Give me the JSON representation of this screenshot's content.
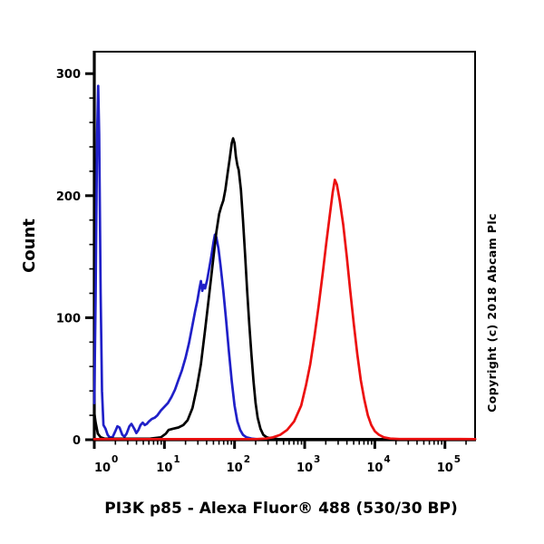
{
  "annotations": {
    "copyright": "Copyright (c) 2018 Abcam Plc"
  },
  "chart_data": {
    "type": "line",
    "chart_kind": "flow-cytometry-histogram-overlay",
    "title": "",
    "xlabel": "PI3K p85 - Alexa Fluor® 488 (530/30 BP)",
    "ylabel": "Count",
    "x_scale": "log10",
    "xlim_log10": [
      0,
      5.43
    ],
    "ylim": [
      0,
      318
    ],
    "x_decades": [
      0,
      1,
      2,
      3,
      4,
      5
    ],
    "x_tick_base": "10",
    "y_major_ticks": [
      0,
      100,
      200,
      300
    ],
    "y_minor_step": 20,
    "grid": false,
    "legend": "none",
    "axis_color": "#000000",
    "series": [
      {
        "name": "blue-curve",
        "color": "#2020c8",
        "peak": {
          "x_log10": 1.72,
          "count": 168
        },
        "points": [
          [
            0.0,
            30
          ],
          [
            0.02,
            120
          ],
          [
            0.04,
            250
          ],
          [
            0.055,
            290
          ],
          [
            0.07,
            250
          ],
          [
            0.09,
            120
          ],
          [
            0.11,
            40
          ],
          [
            0.13,
            12
          ],
          [
            0.16,
            9
          ],
          [
            0.19,
            4
          ],
          [
            0.22,
            2
          ],
          [
            0.26,
            2
          ],
          [
            0.3,
            7
          ],
          [
            0.33,
            11
          ],
          [
            0.36,
            10
          ],
          [
            0.4,
            4
          ],
          [
            0.43,
            2.5
          ],
          [
            0.46,
            5
          ],
          [
            0.5,
            11
          ],
          [
            0.53,
            13
          ],
          [
            0.57,
            9
          ],
          [
            0.6,
            5.5
          ],
          [
            0.63,
            8
          ],
          [
            0.66,
            12
          ],
          [
            0.69,
            14
          ],
          [
            0.72,
            12
          ],
          [
            0.75,
            13
          ],
          [
            0.78,
            15
          ],
          [
            0.82,
            17
          ],
          [
            0.86,
            18
          ],
          [
            0.9,
            20
          ],
          [
            0.95,
            24
          ],
          [
            1.0,
            27
          ],
          [
            1.05,
            30
          ],
          [
            1.1,
            35
          ],
          [
            1.15,
            41
          ],
          [
            1.2,
            49
          ],
          [
            1.25,
            57
          ],
          [
            1.3,
            67
          ],
          [
            1.35,
            79
          ],
          [
            1.4,
            94
          ],
          [
            1.44,
            106
          ],
          [
            1.47,
            114
          ],
          [
            1.5,
            124
          ],
          [
            1.52,
            130
          ],
          [
            1.54,
            122
          ],
          [
            1.56,
            127
          ],
          [
            1.58,
            124
          ],
          [
            1.61,
            131
          ],
          [
            1.64,
            141
          ],
          [
            1.67,
            151
          ],
          [
            1.7,
            162
          ],
          [
            1.72,
            168
          ],
          [
            1.74,
            166
          ],
          [
            1.77,
            157
          ],
          [
            1.8,
            143
          ],
          [
            1.84,
            122
          ],
          [
            1.88,
            98
          ],
          [
            1.92,
            72
          ],
          [
            1.96,
            48
          ],
          [
            2.0,
            28
          ],
          [
            2.04,
            15
          ],
          [
            2.08,
            8
          ],
          [
            2.12,
            4
          ],
          [
            2.17,
            2
          ],
          [
            2.24,
            1
          ],
          [
            2.32,
            0.5
          ]
        ]
      },
      {
        "name": "black-curve",
        "color": "#000000",
        "peak": {
          "x_log10": 1.98,
          "count": 247
        },
        "points": [
          [
            0.0,
            22
          ],
          [
            0.02,
            14
          ],
          [
            0.05,
            5
          ],
          [
            0.09,
            2
          ],
          [
            0.15,
            0.8
          ],
          [
            0.5,
            0.8
          ],
          [
            0.8,
            1
          ],
          [
            0.95,
            2
          ],
          [
            1.02,
            5
          ],
          [
            1.06,
            8
          ],
          [
            1.12,
            9
          ],
          [
            1.2,
            10
          ],
          [
            1.27,
            12
          ],
          [
            1.33,
            16
          ],
          [
            1.4,
            26
          ],
          [
            1.46,
            42
          ],
          [
            1.52,
            62
          ],
          [
            1.58,
            90
          ],
          [
            1.64,
            120
          ],
          [
            1.7,
            150
          ],
          [
            1.74,
            170
          ],
          [
            1.78,
            185
          ],
          [
            1.81,
            191
          ],
          [
            1.84,
            196
          ],
          [
            1.87,
            205
          ],
          [
            1.9,
            218
          ],
          [
            1.93,
            230
          ],
          [
            1.96,
            243
          ],
          [
            1.98,
            247
          ],
          [
            2.0,
            243
          ],
          [
            2.02,
            232
          ],
          [
            2.04,
            225
          ],
          [
            2.06,
            221
          ],
          [
            2.09,
            205
          ],
          [
            2.12,
            180
          ],
          [
            2.15,
            152
          ],
          [
            2.18,
            122
          ],
          [
            2.21,
            95
          ],
          [
            2.24,
            70
          ],
          [
            2.27,
            48
          ],
          [
            2.3,
            30
          ],
          [
            2.33,
            18
          ],
          [
            2.37,
            9
          ],
          [
            2.41,
            4
          ],
          [
            2.46,
            2
          ],
          [
            2.52,
            1
          ],
          [
            2.62,
            0.6
          ],
          [
            2.8,
            0.5
          ],
          [
            5.43,
            0.5
          ]
        ]
      },
      {
        "name": "red-curve",
        "color": "#ec1010",
        "peak": {
          "x_log10": 3.43,
          "count": 213
        },
        "points": [
          [
            0.0,
            0.5
          ],
          [
            2.3,
            0.5
          ],
          [
            2.45,
            1
          ],
          [
            2.55,
            2
          ],
          [
            2.65,
            4
          ],
          [
            2.75,
            8
          ],
          [
            2.85,
            15
          ],
          [
            2.95,
            28
          ],
          [
            3.02,
            45
          ],
          [
            3.08,
            62
          ],
          [
            3.14,
            85
          ],
          [
            3.2,
            110
          ],
          [
            3.26,
            138
          ],
          [
            3.31,
            162
          ],
          [
            3.36,
            185
          ],
          [
            3.4,
            203
          ],
          [
            3.43,
            213
          ],
          [
            3.46,
            209
          ],
          [
            3.5,
            196
          ],
          [
            3.55,
            176
          ],
          [
            3.6,
            150
          ],
          [
            3.65,
            122
          ],
          [
            3.7,
            95
          ],
          [
            3.75,
            70
          ],
          [
            3.8,
            49
          ],
          [
            3.85,
            33
          ],
          [
            3.9,
            20
          ],
          [
            3.95,
            12
          ],
          [
            4.0,
            7
          ],
          [
            4.06,
            4
          ],
          [
            4.13,
            2
          ],
          [
            4.22,
            1
          ],
          [
            4.35,
            0.6
          ],
          [
            5.43,
            0.5
          ]
        ]
      }
    ]
  }
}
